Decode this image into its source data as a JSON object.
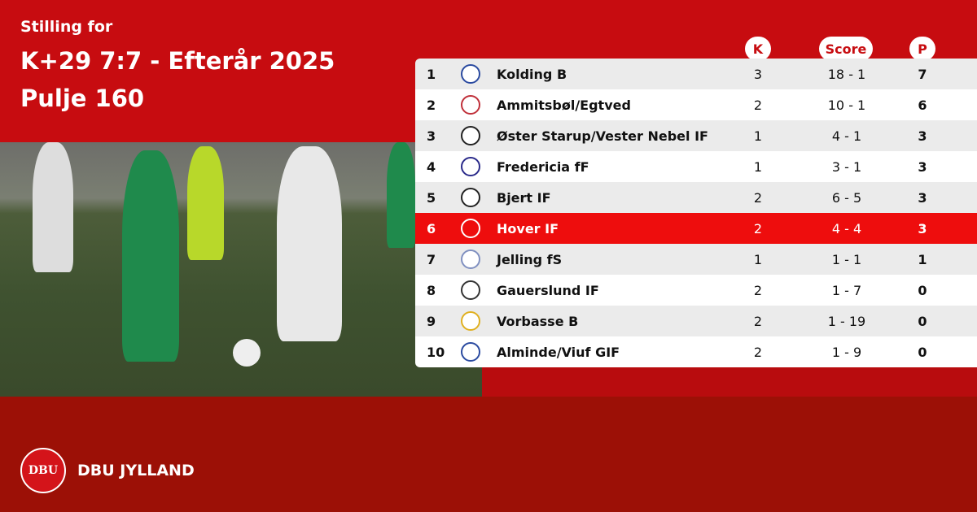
{
  "header": {
    "subtitle": "Stilling for",
    "title": "K+29 7:7 - Efterår 2025",
    "group": "Pulje 160"
  },
  "table": {
    "columns": {
      "games": "K",
      "score": "Score",
      "points": "P"
    },
    "highlight_color": "#ee0d0d",
    "rows": [
      {
        "pos": "1",
        "team": "Kolding B",
        "games": "3",
        "score": "18 - 1",
        "points": "7",
        "logo_color": "#2a4aa0"
      },
      {
        "pos": "2",
        "team": "Ammitsbøl/Egtved",
        "games": "2",
        "score": "10 - 1",
        "points": "6",
        "logo_color": "#c0303a"
      },
      {
        "pos": "3",
        "team": "Øster Starup/Vester Nebel IF",
        "games": "1",
        "score": "4 - 1",
        "points": "3",
        "logo_color": "#222222"
      },
      {
        "pos": "4",
        "team": "Fredericia fF",
        "games": "1",
        "score": "3 - 1",
        "points": "3",
        "logo_color": "#2a2a8a"
      },
      {
        "pos": "5",
        "team": "Bjert IF",
        "games": "2",
        "score": "6 - 5",
        "points": "3",
        "logo_color": "#222222"
      },
      {
        "pos": "6",
        "team": "Hover IF",
        "games": "2",
        "score": "4 - 4",
        "points": "3",
        "logo_color": "#ffffff",
        "highlighted": true
      },
      {
        "pos": "7",
        "team": "Jelling fS",
        "games": "1",
        "score": "1 - 1",
        "points": "1",
        "logo_color": "#8090c0"
      },
      {
        "pos": "8",
        "team": "Gauerslund IF",
        "games": "2",
        "score": "1 - 7",
        "points": "0",
        "logo_color": "#333333"
      },
      {
        "pos": "9",
        "team": "Vorbasse B",
        "games": "2",
        "score": "1 - 19",
        "points": "0",
        "logo_color": "#e0b020"
      },
      {
        "pos": "10",
        "team": "Alminde/Viuf GIF",
        "games": "2",
        "score": "1 - 9",
        "points": "0",
        "logo_color": "#2a4aa0"
      }
    ]
  },
  "footer": {
    "org": "DBU JYLLAND",
    "logo_text": "DBU"
  }
}
